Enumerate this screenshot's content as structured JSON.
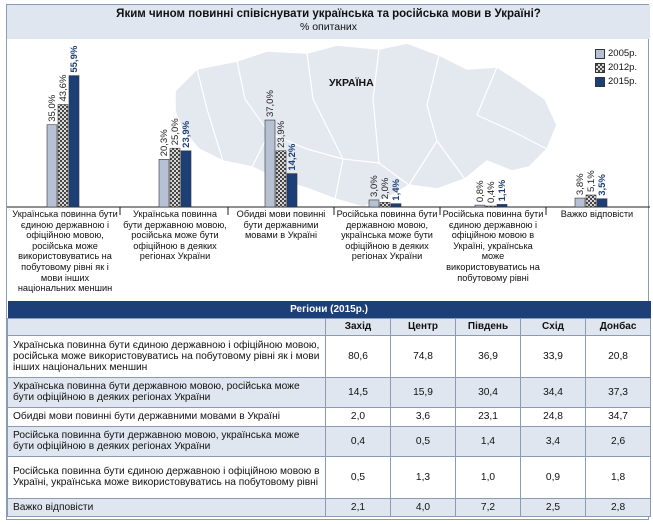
{
  "title": "Яким чином повинні співіснувати українська та російська мови в Україні?",
  "subtitle": "% опитаних",
  "map_label": "УКРАЇНА",
  "colors": {
    "s2005": "#b6c2d3",
    "s2012": "#ffffff",
    "s2015": "#1d3f77",
    "header_bg": "#1d3f77",
    "light_bg": "#dfe6f0"
  },
  "chart_data": {
    "type": "bar",
    "title": "Яким чином повинні співіснувати українська та російська мови в Україні?",
    "ylabel": "% опитаних",
    "ylim": [
      0,
      60
    ],
    "legend_position": "top-right",
    "categories": [
      "Українська повинна бути єдиною державною і офіційною мовою, російська може використовуватись на побутовому рівні як і мови інших національних меншин",
      "Українська повинна бути державною мовою, російська може бути офіційною в деяких регіонах України",
      "Обидві мови повинні бути державними мовами в Україні",
      "Російська повинна бути державною мовою, українська може бути офіційною в деяких регіонах України",
      "Російська повинна бути єдиною державною і офіційною мовою в Україні, українська може використовуватись на побутовому рівні",
      "Важко відповісти"
    ],
    "series": [
      {
        "name": "2005р.",
        "values": [
          35.0,
          20.3,
          37.0,
          3.0,
          0.8,
          3.8
        ],
        "labels": [
          "35,0%",
          "20,3%",
          "37,0%",
          "3,0%",
          "0,8%",
          "3,8%"
        ]
      },
      {
        "name": "2012р.",
        "values": [
          43.6,
          25.0,
          23.9,
          2.0,
          0.4,
          5.1
        ],
        "labels": [
          "43,6%",
          "25,0%",
          "23,9%",
          "2,0%",
          "0,4%",
          "5,1%"
        ]
      },
      {
        "name": "2015р.",
        "values": [
          55.9,
          23.9,
          14.2,
          1.4,
          1.1,
          3.5
        ],
        "labels": [
          "55,9%",
          "23,9%",
          "14,2%",
          "1,4%",
          "1,1%",
          "3,5%"
        ]
      }
    ]
  },
  "table": {
    "header": "Регіони (2015р.)",
    "columns": [
      "Захід",
      "Центр",
      "Південь",
      "Схід",
      "Донбас"
    ],
    "rows": [
      {
        "label": "Українська повинна бути єдиною державною і офіційною мовою, російська може використовуватись на побутовому рівні як і мови інших національних меншин",
        "values": [
          "80,6",
          "74,8",
          "36,9",
          "33,9",
          "20,8"
        ]
      },
      {
        "label": "Українська повинна бути державною мовою, російська може бути офіційною в деяких регіонах України",
        "values": [
          "14,5",
          "15,9",
          "30,4",
          "34,4",
          "37,3"
        ]
      },
      {
        "label": "Обидві мови повинні бути державними мовами в Україні",
        "values": [
          "2,0",
          "3,6",
          "23,1",
          "24,8",
          "34,7"
        ]
      },
      {
        "label": "Російська повинна бути державною мовою, українська може бути офіційною в деяких регіонах України",
        "values": [
          "0,4",
          "0,5",
          "1,4",
          "3,4",
          "2,6"
        ]
      },
      {
        "label": "Російська повинна бути єдиною державною і офіційною мовою в Україні, українська може використовуватись на побутовому рівні",
        "values": [
          "0,5",
          "1,3",
          "1,0",
          "0,9",
          "1,8"
        ]
      },
      {
        "label": "Важко відповісти",
        "values": [
          "2,1",
          "4,0",
          "7,2",
          "2,5",
          "2,8"
        ]
      }
    ]
  }
}
